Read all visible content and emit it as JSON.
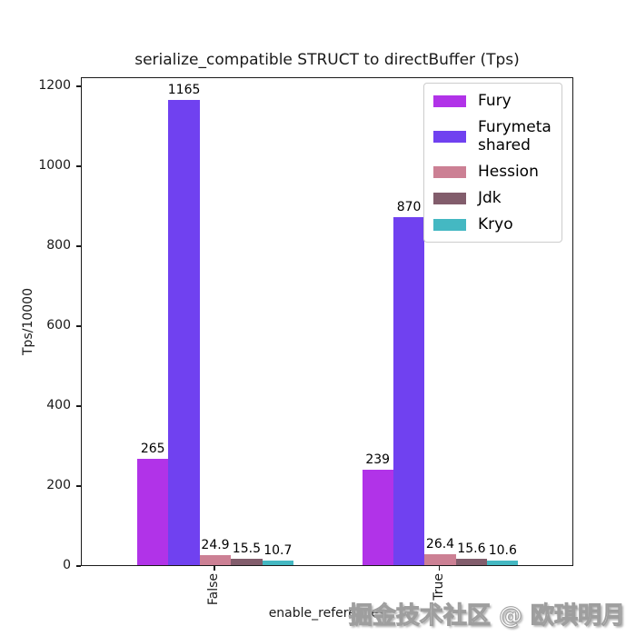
{
  "watermark": "掘金技术社区 @ 欧琪明月",
  "chart_data": {
    "type": "bar",
    "title": "serialize_compatible STRUCT to directBuffer (Tps)",
    "xlabel": "enable_references",
    "ylabel": "Tps/10000",
    "categories": [
      "False",
      "True"
    ],
    "series": [
      {
        "name": "Fury",
        "color": "#B133E8",
        "values": [
          265,
          239
        ],
        "value_labels": [
          "265",
          "239"
        ]
      },
      {
        "name": "Furymeta shared",
        "color": "#7041F0",
        "values": [
          1165,
          870
        ],
        "value_labels": [
          "1165",
          "870"
        ]
      },
      {
        "name": "Hession",
        "color": "#CC8094",
        "values": [
          24.9,
          26.4
        ],
        "value_labels": [
          "24.9",
          "26.4"
        ]
      },
      {
        "name": "Jdk",
        "color": "#825D6C",
        "values": [
          15.5,
          15.6
        ],
        "value_labels": [
          "15.5",
          "15.6"
        ]
      },
      {
        "name": "Kryo",
        "color": "#44B8C2",
        "values": [
          10.7,
          10.6
        ],
        "value_labels": [
          "10.7",
          "10.6"
        ]
      }
    ],
    "yticks": [
      0,
      200,
      400,
      600,
      800,
      1000,
      1200
    ],
    "ylim": [
      0,
      1223
    ],
    "legend_position": "upper right",
    "grid": false,
    "bar_labels": true,
    "xtick_rotation": 90
  }
}
